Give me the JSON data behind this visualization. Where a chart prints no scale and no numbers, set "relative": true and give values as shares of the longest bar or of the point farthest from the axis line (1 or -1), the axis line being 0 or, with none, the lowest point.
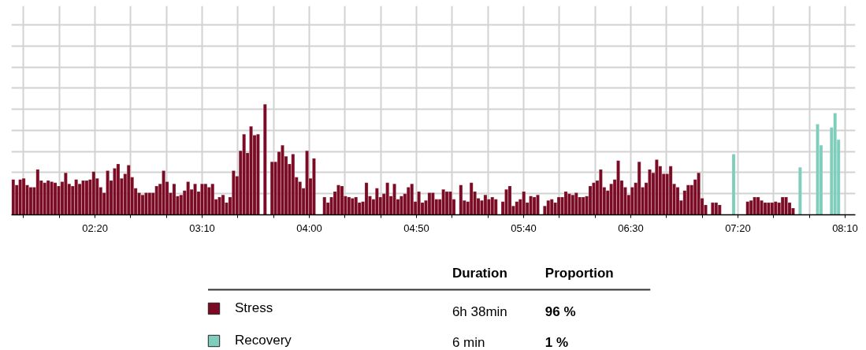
{
  "chart_data": {
    "type": "bar",
    "relative": true,
    "grid": true,
    "legend": "bottom",
    "xlim": [
      1.683,
      8.247
    ],
    "xticks": [
      {
        "value": 1.7778,
        "label": null
      },
      {
        "value": 2.0556,
        "label": null
      },
      {
        "value": 2.3333,
        "label": "02:20"
      },
      {
        "value": 2.6111,
        "label": null
      },
      {
        "value": 2.8889,
        "label": null
      },
      {
        "value": 3.1667,
        "label": "03:10"
      },
      {
        "value": 3.4444,
        "label": null
      },
      {
        "value": 3.7222,
        "label": null
      },
      {
        "value": 4,
        "label": "04:00"
      },
      {
        "value": 4.2778,
        "label": null
      },
      {
        "value": 4.5556,
        "label": null
      },
      {
        "value": 4.8333,
        "label": "04:50"
      },
      {
        "value": 5.1111,
        "label": null
      },
      {
        "value": 5.3889,
        "label": null
      },
      {
        "value": 5.6667,
        "label": "05:40"
      },
      {
        "value": 5.9444,
        "label": null
      },
      {
        "value": 6.2222,
        "label": null
      },
      {
        "value": 6.5,
        "label": "06:30"
      },
      {
        "value": 6.7778,
        "label": null
      },
      {
        "value": 7.0556,
        "label": null
      },
      {
        "value": 7.3333,
        "label": "07:20"
      },
      {
        "value": 7.6111,
        "label": null
      },
      {
        "value": 7.8889,
        "label": null
      },
      {
        "value": 8.1667,
        "label": "08:10"
      }
    ],
    "x": [
      1.697,
      1.7242,
      1.7514,
      1.7786,
      1.8058,
      1.833,
      1.8602,
      1.8874,
      1.9146,
      1.9418,
      1.969,
      1.9962,
      2.0234,
      2.0506,
      2.0778,
      2.105,
      2.1322,
      2.1594,
      2.1866,
      2.2138,
      2.241,
      2.2682,
      2.2954,
      2.3226,
      2.3498,
      2.377,
      2.4042,
      2.4314,
      2.4586,
      2.4858,
      2.513,
      2.5402,
      2.5674,
      2.5946,
      2.6218,
      2.649,
      2.6762,
      2.7034,
      2.7306,
      2.7578,
      2.785,
      2.8122,
      2.8394,
      2.8666,
      2.8938,
      2.921,
      2.9482,
      2.9754,
      3.0026,
      3.0298,
      3.057,
      3.0842,
      3.1114,
      3.1386,
      3.1658,
      3.193,
      3.2202,
      3.2474,
      3.2746,
      3.3018,
      3.329,
      3.3562,
      3.3834,
      3.4106,
      3.4378,
      3.465,
      3.4922,
      3.5194,
      3.5466,
      3.5738,
      3.601,
      3.6282,
      3.6554,
      3.6826,
      3.7098,
      3.737,
      3.7642,
      3.7914,
      3.8186,
      3.8458,
      3.873,
      3.9002,
      3.9274,
      3.9546,
      3.9818,
      4.009,
      4.0362,
      4.0634,
      4.0906,
      4.1178,
      4.145,
      4.1722,
      4.1994,
      4.2266,
      4.2538,
      4.281,
      4.3082,
      4.3354,
      4.3626,
      4.3898,
      4.417,
      4.4442,
      4.4714,
      4.4986,
      4.5258,
      4.553,
      4.5802,
      4.6074,
      4.6346,
      4.6618,
      4.689,
      4.7162,
      4.7434,
      4.7706,
      4.7978,
      4.825,
      4.8522,
      4.8794,
      4.9066,
      4.9338,
      4.961,
      4.9882,
      5.0154,
      5.0426,
      5.0698,
      5.097,
      5.1242,
      5.1514,
      5.1786,
      5.2058,
      5.233,
      5.2602,
      5.2874,
      5.3146,
      5.3418,
      5.369,
      5.3962,
      5.4234,
      5.4506,
      5.4778,
      5.505,
      5.5322,
      5.5594,
      5.5866,
      5.6138,
      5.641,
      5.6682,
      5.6954,
      5.7226,
      5.7498,
      5.777,
      5.8042,
      5.8314,
      5.8586,
      5.8858,
      5.913,
      5.9402,
      5.9674,
      5.9946,
      6.0218,
      6.049,
      6.0762,
      6.1034,
      6.1306,
      6.1578,
      6.185,
      6.2122,
      6.2394,
      6.2666,
      6.2938,
      6.321,
      6.3482,
      6.3754,
      6.4026,
      6.4298,
      6.457,
      6.4842,
      6.5114,
      6.5386,
      6.5658,
      6.593,
      6.6202,
      6.6474,
      6.6746,
      6.7018,
      6.729,
      6.7562,
      6.7834,
      6.8106,
      6.8378,
      6.865,
      6.8922,
      6.9194,
      6.9466,
      6.9738,
      7.001,
      7.0282,
      7.0554,
      7.0826,
      7.1098,
      7.137,
      7.1642,
      7.1914,
      7.2186,
      7.2458,
      7.273,
      7.3002,
      7.3274,
      7.3546,
      7.3818,
      7.409,
      7.4362,
      7.4634,
      7.4906,
      7.5178,
      7.545,
      7.5722,
      7.5994,
      7.6266,
      7.6538,
      7.681,
      7.7082,
      7.7354,
      7.7626
    ],
    "series": [
      {
        "name": "Stress",
        "color": "#7b0a24",
        "values": [
          0.32,
          0.27,
          0.32,
          0.33,
          0.27,
          0.25,
          0.25,
          0.41,
          0.31,
          0.29,
          0.31,
          0.3,
          0.29,
          0.26,
          0.3,
          0.38,
          0.28,
          0.26,
          0.32,
          0.28,
          0.31,
          0.31,
          0.32,
          0.39,
          0.33,
          0.25,
          0.2,
          0.4,
          0.31,
          0.42,
          0.46,
          0.33,
          0.37,
          0.45,
          0.34,
          0.24,
          0.2,
          0.18,
          0.2,
          0.2,
          0.2,
          0.26,
          0.28,
          0.4,
          0.3,
          0.2,
          0.28,
          0.17,
          0.18,
          0.22,
          0.3,
          0.23,
          0.28,
          0.21,
          0.28,
          0.28,
          0.25,
          0.28,
          0.14,
          0.16,
          0.18,
          0.11,
          0.16,
          0.4,
          0.35,
          0.58,
          0.73,
          0.56,
          0.8,
          0.72,
          0.73,
          null,
          1.0,
          null,
          0.48,
          0.48,
          0.57,
          0.63,
          0.53,
          0.46,
          0.55,
          0.34,
          0.3,
          0.24,
          0.58,
          0.33,
          0.51,
          null,
          null,
          0.16,
          0.11,
          0.16,
          0.21,
          0.27,
          0.26,
          0.17,
          0.16,
          0.15,
          0.16,
          0.11,
          0.12,
          0.29,
          0.17,
          0.14,
          0.24,
          0.16,
          0.19,
          0.29,
          0.17,
          0.28,
          0.14,
          0.17,
          0.19,
          0.25,
          0.28,
          0.12,
          0.21,
          0.11,
          0.13,
          0.2,
          0.2,
          0.14,
          0.14,
          0.23,
          0.21,
          0.21,
          0.14,
          null,
          0.27,
          0.13,
          0.12,
          0.29,
          0.21,
          0.15,
          0.13,
          0.18,
          0.14,
          0.16,
          0.14,
          null,
          0.12,
          0.23,
          0.26,
          0.08,
          0.12,
          0.14,
          0.21,
          0.11,
          0.17,
          0.16,
          0.18,
          null,
          0.08,
          0.13,
          0.14,
          0.11,
          0.16,
          0.16,
          0.21,
          0.19,
          0.18,
          0.2,
          0.16,
          0.16,
          0.17,
          0.26,
          0.29,
          0.31,
          0.41,
          0.25,
          0.22,
          0.28,
          0.32,
          0.49,
          0.31,
          0.25,
          0.18,
          0.25,
          0.29,
          0.48,
          0.25,
          0.29,
          0.41,
          0.38,
          0.5,
          0.44,
          0.37,
          0.37,
          0.44,
          0.28,
          0.25,
          0.13,
          0.22,
          0.27,
          0.27,
          0.32,
          0.38,
          0.15,
          0.09,
          null,
          0.11,
          0.11,
          0.09,
          null,
          null,
          null,
          null,
          null,
          null,
          null,
          0.12,
          0.13,
          0.16,
          0.16,
          0.13,
          0.11,
          0.11,
          0.11,
          0.12,
          0.11,
          0.16,
          0.16,
          0.11,
          0.06
        ]
      },
      {
        "name": "Recovery",
        "color": "#7fcdbb",
        "x": [
          7.3002,
          7.817,
          7.953,
          7.9802,
          8.0618,
          8.089,
          8.1162
        ],
        "values": [
          0.55,
          0.43,
          0.82,
          0.63,
          0.79,
          0.92,
          0.68
        ]
      }
    ],
    "annotations": [
      "Duration",
      "Proportion",
      "6h 38min",
      "96 %",
      "6 min",
      "1 %"
    ]
  }
}
